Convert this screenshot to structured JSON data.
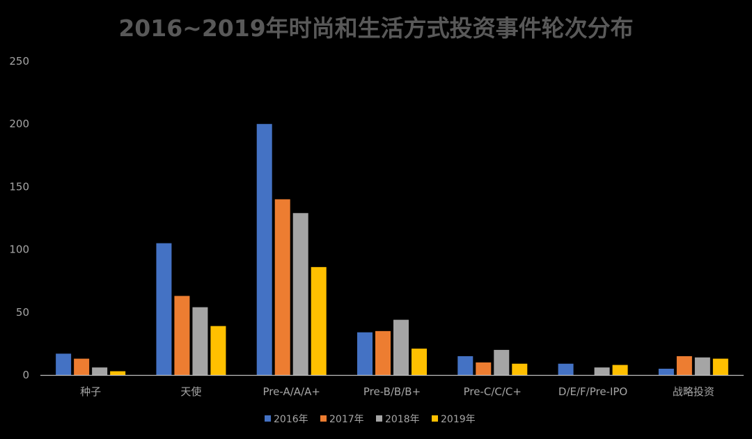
{
  "chart_data": {
    "type": "bar",
    "title": "2016~2019年时尚和生活方式投资事件轮次分布",
    "xlabel": "",
    "ylabel": "",
    "ylim": [
      0,
      250
    ],
    "yticks": [
      0,
      50,
      100,
      150,
      200,
      250
    ],
    "grid": false,
    "legend_position": "bottom",
    "categories": [
      "种子",
      "天使",
      "Pre-A/A/A+",
      "Pre-B/B/B+",
      "Pre-C/C/C+",
      "D/E/F/Pre-IPO",
      "战略投资"
    ],
    "series": [
      {
        "name": "2016年",
        "color": "#4472C4",
        "values": [
          17,
          105,
          200,
          34,
          15,
          9,
          5
        ]
      },
      {
        "name": "2017年",
        "color": "#ED7D31",
        "values": [
          13,
          63,
          140,
          35,
          10,
          0,
          15
        ]
      },
      {
        "name": "2018年",
        "color": "#A5A5A5",
        "values": [
          6,
          54,
          129,
          44,
          20,
          6,
          14
        ]
      },
      {
        "name": "2019年",
        "color": "#FFC000",
        "values": [
          3,
          39,
          86,
          21,
          9,
          8,
          13
        ]
      }
    ]
  },
  "colors": {
    "background": "#000000",
    "axis": "#BFBFBF",
    "text": "#A6A6A6",
    "title": "#595959"
  }
}
